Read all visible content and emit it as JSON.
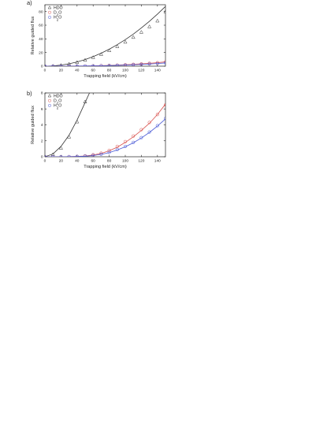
{
  "chart_data": [
    {
      "type": "scatter",
      "panel_label": "a)",
      "xlabel": "Trapping field (kV/cm)",
      "ylabel": "Relative guided flux",
      "xlim": [
        0,
        150
      ],
      "ylim": [
        0,
        90
      ],
      "xticks": [
        0,
        20,
        40,
        60,
        80,
        100,
        120,
        140
      ],
      "yticks": [
        0,
        20,
        40,
        60,
        80
      ],
      "legend_position": "top-left",
      "series": [
        {
          "name": "HDO",
          "marker": "triangle",
          "color": "#333333",
          "x": [
            0,
            10,
            20,
            30,
            40,
            50,
            60,
            70,
            80,
            90,
            100,
            110,
            120,
            130,
            140,
            150
          ],
          "y": [
            0,
            0.4,
            1.5,
            3.2,
            5.8,
            9,
            13,
            17.5,
            23,
            29,
            35.5,
            42.5,
            50,
            58,
            66.5,
            80
          ],
          "fit": {
            "x": [
              0,
              10,
              20,
              30,
              40,
              50,
              60,
              70,
              80,
              90,
              100,
              110,
              120,
              130,
              140,
              150
            ],
            "y": [
              0,
              0.4,
              1.6,
              3.5,
              6.2,
              9.7,
              14,
              19,
              24.8,
              31.5,
              38.9,
              47,
              56,
              65.7,
              76.2,
              87.5
            ]
          }
        },
        {
          "name": "D2O",
          "marker": "circle",
          "color": "#d9534f",
          "x": [
            0,
            10,
            20,
            30,
            40,
            50,
            60,
            70,
            80,
            90,
            100,
            110,
            120,
            130,
            140,
            150
          ],
          "y": [
            0,
            0,
            0,
            0.1,
            0.2,
            0.3,
            0.5,
            0.8,
            1.1,
            1.6,
            2.1,
            2.7,
            3.4,
            4.2,
            5.1,
            6.3
          ],
          "fit": {
            "x": [
              0,
              10,
              20,
              30,
              40,
              50,
              60,
              70,
              80,
              90,
              100,
              110,
              120,
              130,
              140,
              150
            ],
            "y": [
              0,
              0,
              0,
              0.1,
              0.2,
              0.3,
              0.5,
              0.8,
              1.1,
              1.6,
              2.1,
              2.7,
              3.4,
              4.2,
              5.1,
              6.3
            ]
          }
        },
        {
          "name": "H2O",
          "marker": "circle",
          "color": "#4a5ad6",
          "x": [
            0,
            10,
            20,
            30,
            40,
            50,
            60,
            70,
            80,
            90,
            100,
            110,
            120,
            130,
            140,
            150
          ],
          "y": [
            0,
            0,
            0,
            0,
            0.1,
            0.2,
            0.4,
            0.6,
            0.9,
            1.2,
            1.6,
            2.1,
            2.6,
            3.2,
            3.9,
            4.7
          ],
          "fit": {
            "x": [
              0,
              10,
              20,
              30,
              40,
              50,
              60,
              70,
              80,
              90,
              100,
              110,
              120,
              130,
              140,
              150
            ],
            "y": [
              0,
              0,
              0,
              0,
              0.1,
              0.2,
              0.4,
              0.6,
              0.9,
              1.2,
              1.6,
              2.1,
              2.6,
              3.2,
              3.9,
              4.7
            ]
          }
        }
      ]
    },
    {
      "type": "scatter",
      "panel_label": "b)",
      "xlabel": "Trapping field (kV/cm)",
      "ylabel": "Relative guided flux",
      "xlim": [
        0,
        150
      ],
      "ylim": [
        0,
        8
      ],
      "xticks": [
        0,
        20,
        40,
        60,
        80,
        100,
        120,
        140
      ],
      "yticks": [
        0,
        2,
        4,
        6,
        8
      ],
      "legend_position": "top-left",
      "series": [
        {
          "name": "HDO",
          "marker": "triangle",
          "color": "#333333",
          "x": [
            0,
            10,
            20,
            30,
            40,
            50
          ],
          "y": [
            0,
            0.3,
            1.1,
            2.5,
            4.4,
            6.9
          ],
          "fit": {
            "x": [
              0,
              10,
              20,
              30,
              40,
              50,
              55,
              60
            ],
            "y": [
              0,
              0.35,
              1.3,
              2.7,
              4.6,
              6.8,
              7.9,
              9.0
            ]
          }
        },
        {
          "name": "D2O",
          "marker": "circle",
          "color": "#d9534f",
          "x": [
            0,
            10,
            20,
            30,
            40,
            50,
            60,
            70,
            80,
            90,
            100,
            110,
            120,
            130,
            140,
            150
          ],
          "y": [
            0,
            0,
            0,
            0.02,
            0.05,
            0.12,
            0.25,
            0.45,
            0.8,
            1.3,
            1.9,
            2.6,
            3.4,
            4.3,
            5.3,
            6.5
          ],
          "fit": {
            "x": [
              0,
              10,
              20,
              30,
              40,
              50,
              60,
              70,
              80,
              90,
              100,
              110,
              120,
              130,
              140,
              150
            ],
            "y": [
              0,
              0,
              0,
              0.02,
              0.05,
              0.1,
              0.22,
              0.42,
              0.75,
              1.2,
              1.8,
              2.5,
              3.3,
              4.2,
              5.3,
              6.6
            ]
          }
        },
        {
          "name": "H2O",
          "marker": "circle",
          "color": "#4a5ad6",
          "x": [
            0,
            10,
            20,
            30,
            40,
            50,
            60,
            70,
            80,
            90,
            100,
            110,
            120,
            130,
            140,
            150
          ],
          "y": [
            0,
            0,
            0,
            0.01,
            0.04,
            0.08,
            0.17,
            0.32,
            0.55,
            0.9,
            1.3,
            1.8,
            2.4,
            3.1,
            3.9,
            4.8
          ],
          "fit": {
            "x": [
              0,
              10,
              20,
              30,
              40,
              50,
              60,
              70,
              80,
              90,
              100,
              110,
              120,
              130,
              140,
              150
            ],
            "y": [
              0,
              0,
              0,
              0.01,
              0.03,
              0.07,
              0.15,
              0.3,
              0.52,
              0.85,
              1.25,
              1.75,
              2.35,
              3.05,
              3.85,
              4.75
            ]
          }
        }
      ]
    }
  ]
}
